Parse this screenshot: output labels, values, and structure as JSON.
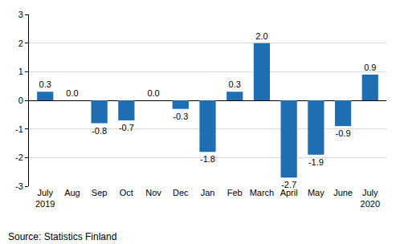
{
  "chart_data": {
    "type": "bar",
    "categories": [
      "July\n2019",
      "Aug",
      "Sep",
      "Oct",
      "Nov",
      "Dec",
      "Jan",
      "Feb",
      "March",
      "April",
      "May",
      "June",
      "July\n2020"
    ],
    "values": [
      0.3,
      0.0,
      -0.8,
      -0.7,
      0.0,
      -0.3,
      -1.8,
      0.3,
      2.0,
      -2.7,
      -1.9,
      -0.9,
      0.9
    ],
    "value_labels": [
      "0.3",
      "0.0",
      "-0.8",
      "-0.7",
      "0.0",
      "-0.3",
      "-1.8",
      "0.3",
      "2.0",
      "-2.7",
      "-1.9",
      "-0.9",
      "0.9"
    ],
    "data_labels": true,
    "color": "#1f6eb1",
    "ylim": [
      -3,
      3
    ],
    "yticks": [
      -3,
      -2,
      -1,
      0,
      1,
      2,
      3
    ],
    "grid": true,
    "annotations": [
      "Source: Statistics Finland"
    ]
  }
}
